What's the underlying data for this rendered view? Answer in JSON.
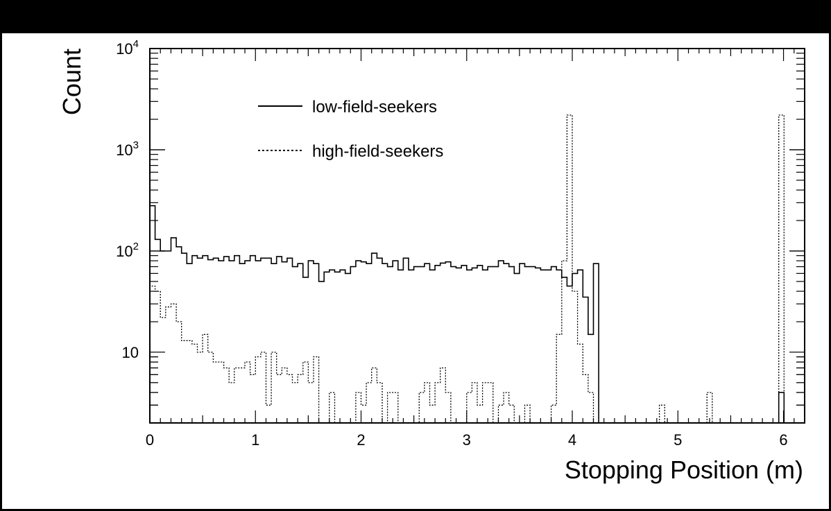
{
  "chart_data": {
    "type": "line",
    "subtype": "step-histogram",
    "xlabel": "Stopping Position (m)",
    "ylabel": "Count",
    "xlim": [
      0,
      6.2
    ],
    "ylim": [
      2,
      10000
    ],
    "yscale": "log",
    "grid": false,
    "legend_position": "top-left",
    "x_ticks": [
      "0",
      "1",
      "2",
      "3",
      "4",
      "5",
      "6"
    ],
    "y_ticks": [
      {
        "value": 10,
        "base": "10",
        "exp": ""
      },
      {
        "value": 100,
        "base": "10",
        "exp": "2"
      },
      {
        "value": 1000,
        "base": "10",
        "exp": "3"
      },
      {
        "value": 10000,
        "base": "10",
        "exp": "4"
      }
    ],
    "bin_width": 0.05,
    "series": [
      {
        "name": "low-field-seekers",
        "line_style": "solid",
        "values": [
          280,
          130,
          100,
          100,
          135,
          110,
          95,
          75,
          90,
          85,
          90,
          82,
          85,
          80,
          88,
          80,
          90,
          75,
          80,
          90,
          80,
          85,
          85,
          75,
          88,
          78,
          85,
          70,
          75,
          55,
          80,
          75,
          50,
          62,
          65,
          62,
          65,
          60,
          70,
          80,
          78,
          75,
          95,
          85,
          75,
          70,
          80,
          65,
          85,
          65,
          70,
          70,
          75,
          65,
          72,
          76,
          78,
          70,
          68,
          72,
          65,
          68,
          72,
          65,
          70,
          70,
          80,
          75,
          70,
          60,
          75,
          70,
          70,
          68,
          65,
          65,
          70,
          65,
          55,
          45,
          60,
          65,
          35,
          15,
          75,
          2
        ]
      },
      {
        "name": "high-field-seekers",
        "line_style": "dotted",
        "values": [
          45,
          40,
          22,
          28,
          30,
          20,
          13,
          13,
          12,
          10,
          15,
          10,
          8,
          8,
          7,
          5,
          7,
          7,
          8,
          6,
          9,
          10,
          3,
          10,
          6,
          7,
          6,
          5,
          6,
          8,
          5,
          9,
          2,
          2,
          4,
          2,
          2,
          2,
          2,
          4,
          3,
          5,
          7,
          5,
          2,
          4,
          4,
          2,
          2,
          2,
          2,
          4,
          5,
          3,
          5,
          7,
          4,
          2,
          2,
          2,
          4,
          5,
          3,
          5,
          5,
          2,
          3,
          4,
          3,
          2,
          2,
          3,
          2,
          2,
          2,
          2,
          3,
          15,
          80,
          2200,
          40,
          12,
          6,
          4
        ]
      }
    ],
    "sparse_peaks": [
      {
        "series": "high-field-seekers",
        "x": 4.85,
        "value": 3
      },
      {
        "series": "high-field-seekers",
        "x": 5.3,
        "value": 4
      },
      {
        "series": "high-field-seekers",
        "x": 5.98,
        "value": 2200
      },
      {
        "series": "low-field-seekers",
        "x": 5.98,
        "value": 4
      }
    ]
  }
}
